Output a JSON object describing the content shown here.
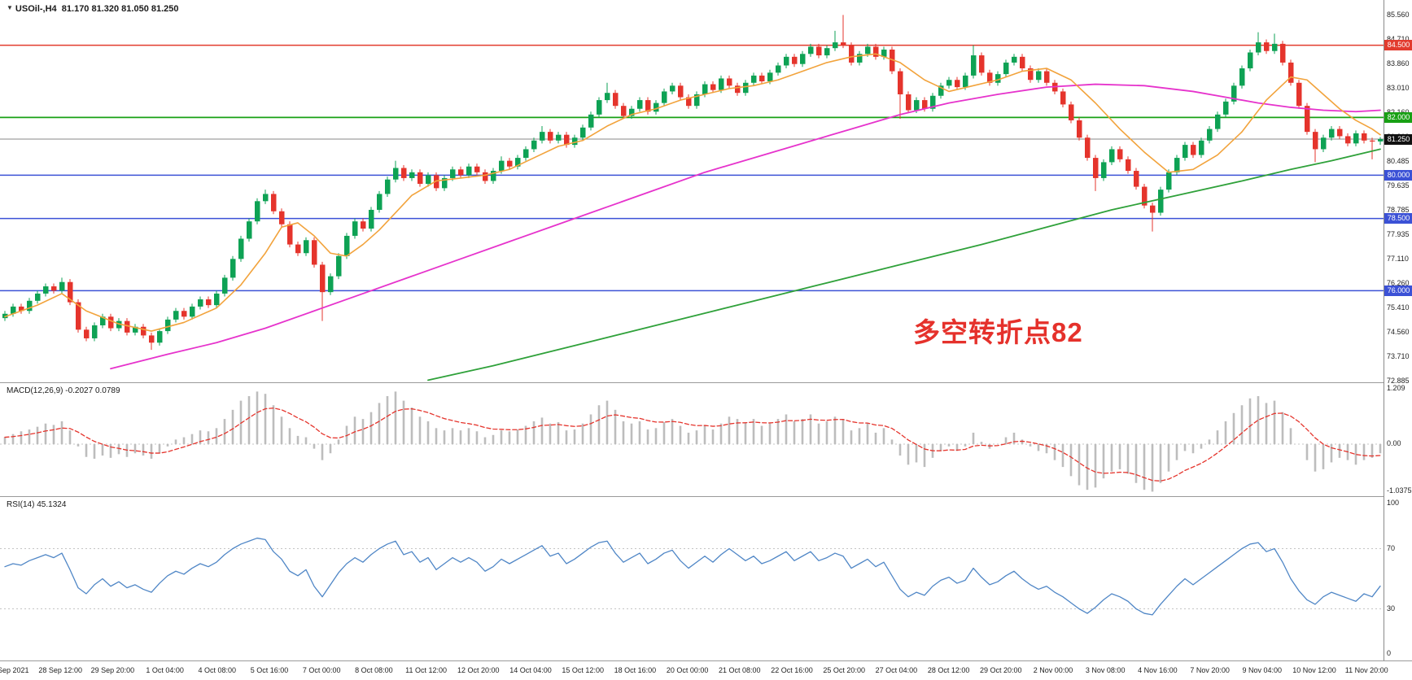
{
  "header": {
    "marker": "▼",
    "symbol_period": "USOil-,H4",
    "ohlc": "81.170 81.320 81.050 81.250"
  },
  "main_chart": {
    "annotation": {
      "text": "多空转折点82",
      "color": "#e5312b"
    },
    "price_scale_labels": [
      "85.560",
      "84.710",
      "83.860",
      "83.010",
      "82.160",
      "81.310",
      "80.485",
      "79.635",
      "78.785",
      "77.935",
      "77.110",
      "76.260",
      "75.410",
      "74.560",
      "73.710",
      "72.885"
    ],
    "badges": [
      {
        "value": "84.500",
        "color": "#e23b2e",
        "price": 84.5
      },
      {
        "value": "82.000",
        "color": "#18a014",
        "price": 82.0
      },
      {
        "value": "81.250",
        "color": "#111111",
        "price": 81.25
      },
      {
        "value": "80.000",
        "color": "#3b51d6",
        "price": 80.0
      },
      {
        "value": "78.500",
        "color": "#3b51d6",
        "price": 78.5
      },
      {
        "value": "76.000",
        "color": "#3b51d6",
        "price": 76.0
      }
    ],
    "levels": [
      {
        "price": 84.5,
        "color": "#e23b2e",
        "width": 1.4
      },
      {
        "price": 82.0,
        "color": "#18a014",
        "width": 1.7
      },
      {
        "price": 81.25,
        "color": "#8a8a8a",
        "width": 1
      },
      {
        "price": 80.0,
        "color": "#3b51d6",
        "width": 1.4
      },
      {
        "price": 78.5,
        "color": "#3b51d6",
        "width": 1.4
      },
      {
        "price": 76.0,
        "color": "#3b51d6",
        "width": 1.4
      }
    ]
  },
  "macd": {
    "label": "MACD(12,26,9) -0.2027 0.0789",
    "scale": [
      {
        "text": "1.209",
        "v": 1.209
      },
      {
        "text": "0.00",
        "v": 0
      },
      {
        "text": "-1.0375",
        "v": -1.0375
      }
    ]
  },
  "rsi": {
    "label": "RSI(14) 45.1324",
    "scale": [
      {
        "text": "100",
        "v": 100
      },
      {
        "text": "70",
        "v": 70
      },
      {
        "text": "30",
        "v": 30
      },
      {
        "text": "0",
        "v": 0
      }
    ]
  },
  "time_axis": {
    "labels": [
      "27 Sep 2021",
      "28 Sep 12:00",
      "29 Sep 20:00",
      "1 Oct 04:00",
      "4 Oct 08:00",
      "5 Oct 16:00",
      "7 Oct 00:00",
      "8 Oct 08:00",
      "11 Oct 12:00",
      "12 Oct 20:00",
      "14 Oct 04:00",
      "15 Oct 12:00",
      "18 Oct 16:00",
      "20 Oct 00:00",
      "21 Oct 08:00",
      "22 Oct 16:00",
      "25 Oct 20:00",
      "27 Oct 04:00",
      "28 Oct 12:00",
      "29 Oct 20:00",
      "2 Nov 00:00",
      "3 Nov 08:00",
      "4 Nov 16:00",
      "7 Nov 20:00",
      "9 Nov 04:00",
      "10 Nov 12:00",
      "11 Nov 20:00"
    ]
  },
  "colors": {
    "bull": "#0ea254",
    "bear": "#e5342c",
    "ma_fast": "#f2a33c",
    "ma_mid": "#e633cc",
    "ma_slow": "#2fa13a",
    "macd_hist": "#bdbdbd",
    "macd_signal": "#e5342c",
    "rsi_line": "#4f86c6",
    "grid_dash": "#c4c4c4"
  },
  "chart_data": {
    "type": "candlestick",
    "symbol": "USOil",
    "timeframe": "H4",
    "title": "USOil-,H4",
    "last_ohlc": {
      "open": 81.17,
      "high": 81.32,
      "low": 81.05,
      "close": 81.25
    },
    "price_axis_range": [
      72.885,
      85.56
    ],
    "horizontal_levels": [
      84.5,
      82.0,
      80.0,
      78.5,
      76.0
    ],
    "current_price": 81.25,
    "open_rule": "previous_close",
    "first_open": 75.05,
    "default_wick": 0.1,
    "closes": [
      75.2,
      75.45,
      75.3,
      75.65,
      75.9,
      76.15,
      76.0,
      76.3,
      75.6,
      74.65,
      74.35,
      74.8,
      75.1,
      74.7,
      74.95,
      74.55,
      74.75,
      74.45,
      74.2,
      74.6,
      75.0,
      75.3,
      75.1,
      75.45,
      75.7,
      75.5,
      75.9,
      76.45,
      77.1,
      77.8,
      78.4,
      79.1,
      79.35,
      78.75,
      78.3,
      77.6,
      77.3,
      77.75,
      76.9,
      75.95,
      76.5,
      77.2,
      77.9,
      78.4,
      78.15,
      78.8,
      79.35,
      79.85,
      80.25,
      79.9,
      80.1,
      79.7,
      80.0,
      79.55,
      79.9,
      80.2,
      80.0,
      80.3,
      80.1,
      79.8,
      80.15,
      80.5,
      80.3,
      80.6,
      80.9,
      81.2,
      81.5,
      81.2,
      81.4,
      81.05,
      81.3,
      81.65,
      82.1,
      82.6,
      82.85,
      82.4,
      82.05,
      82.3,
      82.6,
      82.2,
      82.5,
      82.9,
      83.1,
      82.7,
      82.4,
      82.8,
      83.15,
      82.95,
      83.35,
      83.1,
      82.85,
      83.2,
      83.45,
      83.25,
      83.55,
      83.8,
      84.1,
      83.85,
      84.2,
      84.45,
      84.15,
      84.4,
      84.6,
      84.5,
      83.9,
      84.2,
      84.45,
      84.1,
      84.35,
      83.6,
      82.8,
      82.25,
      82.6,
      82.3,
      82.75,
      83.1,
      83.3,
      83.05,
      83.45,
      84.15,
      83.55,
      83.2,
      83.5,
      83.9,
      84.1,
      83.7,
      83.3,
      83.6,
      83.2,
      82.9,
      82.45,
      81.9,
      81.3,
      80.6,
      79.9,
      80.45,
      80.9,
      80.55,
      80.15,
      79.6,
      78.95,
      78.7,
      79.5,
      80.1,
      80.6,
      81.05,
      80.7,
      81.2,
      81.6,
      82.1,
      82.55,
      83.1,
      83.7,
      84.25,
      84.6,
      84.3,
      84.55,
      83.9,
      83.2,
      82.4,
      81.5,
      80.9,
      81.3,
      81.6,
      81.35,
      81.1,
      81.45,
      81.2,
      81.17,
      81.25
    ],
    "wick_overrides": {
      "7": {
        "h": 76.45
      },
      "18": {
        "l": 73.95
      },
      "32": {
        "h": 79.5
      },
      "39": {
        "l": 74.95
      },
      "48": {
        "h": 80.5
      },
      "61": {
        "h": 80.65
      },
      "66": {
        "h": 81.7
      },
      "74": {
        "h": 83.2
      },
      "102": {
        "h": 85.0
      },
      "103": {
        "h": 85.55
      },
      "110": {
        "l": 81.95
      },
      "119": {
        "h": 84.5
      },
      "134": {
        "l": 79.45
      },
      "141": {
        "l": 78.05
      },
      "154": {
        "h": 84.95
      },
      "156": {
        "h": 84.9
      },
      "161": {
        "l": 80.45
      },
      "168": {
        "l": 80.55
      },
      "169": {
        "h": 81.32,
        "l": 81.05
      }
    },
    "ma_fast_orange": [
      [
        0,
        75.1
      ],
      [
        4,
        75.5
      ],
      [
        7,
        75.9
      ],
      [
        10,
        75.3
      ],
      [
        14,
        74.85
      ],
      [
        18,
        74.6
      ],
      [
        22,
        74.9
      ],
      [
        26,
        75.4
      ],
      [
        29,
        76.2
      ],
      [
        32,
        77.3
      ],
      [
        34,
        78.2
      ],
      [
        36,
        78.35
      ],
      [
        38,
        77.9
      ],
      [
        40,
        77.3
      ],
      [
        42,
        77.2
      ],
      [
        44,
        77.6
      ],
      [
        46,
        78.1
      ],
      [
        48,
        78.7
      ],
      [
        50,
        79.3
      ],
      [
        53,
        79.8
      ],
      [
        56,
        79.9
      ],
      [
        59,
        80.0
      ],
      [
        62,
        80.2
      ],
      [
        65,
        80.6
      ],
      [
        68,
        81.0
      ],
      [
        71,
        81.2
      ],
      [
        74,
        81.7
      ],
      [
        77,
        82.1
      ],
      [
        80,
        82.3
      ],
      [
        83,
        82.6
      ],
      [
        86,
        82.8
      ],
      [
        89,
        83.0
      ],
      [
        92,
        83.1
      ],
      [
        95,
        83.3
      ],
      [
        98,
        83.6
      ],
      [
        101,
        83.9
      ],
      [
        104,
        84.1
      ],
      [
        107,
        84.2
      ],
      [
        110,
        83.9
      ],
      [
        113,
        83.3
      ],
      [
        116,
        82.9
      ],
      [
        119,
        83.1
      ],
      [
        122,
        83.3
      ],
      [
        125,
        83.6
      ],
      [
        128,
        83.7
      ],
      [
        131,
        83.3
      ],
      [
        134,
        82.5
      ],
      [
        137,
        81.6
      ],
      [
        140,
        80.8
      ],
      [
        143,
        80.1
      ],
      [
        146,
        80.2
      ],
      [
        149,
        80.7
      ],
      [
        152,
        81.5
      ],
      [
        155,
        82.6
      ],
      [
        158,
        83.4
      ],
      [
        160,
        83.3
      ],
      [
        162,
        82.8
      ],
      [
        164,
        82.3
      ],
      [
        166,
        81.9
      ],
      [
        168,
        81.6
      ],
      [
        169,
        81.4
      ]
    ],
    "ma_mid_magenta": [
      [
        13,
        73.3
      ],
      [
        20,
        73.8
      ],
      [
        26,
        74.2
      ],
      [
        32,
        74.7
      ],
      [
        38,
        75.3
      ],
      [
        44,
        75.9
      ],
      [
        50,
        76.5
      ],
      [
        56,
        77.1
      ],
      [
        62,
        77.7
      ],
      [
        68,
        78.3
      ],
      [
        74,
        78.9
      ],
      [
        80,
        79.5
      ],
      [
        86,
        80.1
      ],
      [
        92,
        80.6
      ],
      [
        98,
        81.1
      ],
      [
        104,
        81.6
      ],
      [
        110,
        82.1
      ],
      [
        116,
        82.5
      ],
      [
        122,
        82.8
      ],
      [
        128,
        83.05
      ],
      [
        134,
        83.15
      ],
      [
        140,
        83.1
      ],
      [
        146,
        82.9
      ],
      [
        150,
        82.7
      ],
      [
        154,
        82.5
      ],
      [
        158,
        82.35
      ],
      [
        162,
        82.25
      ],
      [
        166,
        82.2
      ],
      [
        169,
        82.25
      ]
    ],
    "ma_slow_green": [
      [
        52,
        72.9
      ],
      [
        60,
        73.4
      ],
      [
        70,
        74.1
      ],
      [
        80,
        74.8
      ],
      [
        90,
        75.5
      ],
      [
        100,
        76.2
      ],
      [
        110,
        76.9
      ],
      [
        120,
        77.6
      ],
      [
        128,
        78.2
      ],
      [
        136,
        78.8
      ],
      [
        144,
        79.3
      ],
      [
        152,
        79.8
      ],
      [
        158,
        80.2
      ],
      [
        163,
        80.5
      ],
      [
        169,
        80.9
      ]
    ],
    "macd": {
      "params": "12,26,9",
      "current": {
        "macd": -0.2027,
        "signal": 0.0789
      },
      "range": [
        -1.0375,
        1.209
      ],
      "signal_rule": "EMA9_of_values",
      "values": [
        0.15,
        0.22,
        0.28,
        0.32,
        0.38,
        0.45,
        0.42,
        0.5,
        0.3,
        -0.05,
        -0.28,
        -0.32,
        -0.25,
        -0.3,
        -0.22,
        -0.28,
        -0.2,
        -0.25,
        -0.32,
        -0.2,
        -0.05,
        0.1,
        0.15,
        0.22,
        0.3,
        0.28,
        0.35,
        0.55,
        0.75,
        0.95,
        1.05,
        1.15,
        1.1,
        0.85,
        0.6,
        0.35,
        0.18,
        0.15,
        -0.1,
        -0.35,
        -0.2,
        0.1,
        0.4,
        0.6,
        0.55,
        0.7,
        0.9,
        1.05,
        1.15,
        0.95,
        0.8,
        0.6,
        0.5,
        0.35,
        0.3,
        0.35,
        0.3,
        0.35,
        0.28,
        0.15,
        0.2,
        0.3,
        0.28,
        0.32,
        0.4,
        0.5,
        0.58,
        0.45,
        0.48,
        0.3,
        0.32,
        0.45,
        0.65,
        0.85,
        0.95,
        0.75,
        0.5,
        0.45,
        0.5,
        0.32,
        0.35,
        0.48,
        0.55,
        0.4,
        0.25,
        0.3,
        0.42,
        0.32,
        0.45,
        0.6,
        0.55,
        0.48,
        0.55,
        0.4,
        0.45,
        0.55,
        0.65,
        0.5,
        0.55,
        0.65,
        0.45,
        0.5,
        0.6,
        0.55,
        0.3,
        0.35,
        0.45,
        0.25,
        0.35,
        0.1,
        -0.25,
        -0.45,
        -0.4,
        -0.5,
        -0.3,
        -0.15,
        -0.05,
        -0.15,
        -0.05,
        0.25,
        0.05,
        -0.1,
        0.0,
        0.15,
        0.25,
        0.1,
        -0.05,
        -0.15,
        -0.2,
        -0.35,
        -0.5,
        -0.7,
        -0.9,
        -1.0,
        -0.95,
        -0.75,
        -0.6,
        -0.55,
        -0.65,
        -0.85,
        -1.0,
        -1.04,
        -0.85,
        -0.6,
        -0.35,
        -0.15,
        -0.2,
        -0.1,
        0.1,
        0.3,
        0.5,
        0.68,
        0.85,
        1.0,
        1.05,
        0.9,
        0.95,
        0.7,
        0.35,
        0.0,
        -0.35,
        -0.6,
        -0.55,
        -0.4,
        -0.3,
        -0.35,
        -0.45,
        -0.35,
        -0.3,
        -0.2
      ]
    },
    "rsi": {
      "period": 14,
      "current": 45.1324,
      "levels": [
        70,
        30
      ],
      "values": [
        58,
        60,
        59,
        62,
        64,
        66,
        64,
        67,
        56,
        44,
        40,
        46,
        50,
        45,
        48,
        44,
        46,
        43,
        41,
        47,
        52,
        55,
        53,
        57,
        60,
        58,
        61,
        66,
        70,
        73,
        75,
        77,
        76,
        68,
        63,
        55,
        52,
        56,
        45,
        38,
        46,
        54,
        60,
        64,
        61,
        66,
        70,
        73,
        75,
        66,
        68,
        61,
        64,
        56,
        60,
        64,
        61,
        64,
        61,
        55,
        58,
        63,
        60,
        63,
        66,
        69,
        72,
        65,
        67,
        60,
        63,
        67,
        71,
        74,
        75,
        67,
        61,
        64,
        67,
        60,
        63,
        67,
        69,
        62,
        57,
        61,
        65,
        61,
        66,
        70,
        66,
        62,
        65,
        60,
        62,
        65,
        68,
        62,
        65,
        68,
        62,
        64,
        67,
        65,
        57,
        60,
        63,
        58,
        61,
        52,
        43,
        38,
        41,
        39,
        45,
        49,
        51,
        47,
        49,
        57,
        51,
        46,
        48,
        52,
        55,
        50,
        46,
        43,
        45,
        41,
        38,
        34,
        30,
        27,
        31,
        36,
        40,
        38,
        35,
        30,
        27,
        26,
        33,
        39,
        45,
        50,
        46,
        50,
        54,
        58,
        62,
        66,
        70,
        73,
        74,
        68,
        70,
        61,
        50,
        42,
        36,
        33,
        38,
        41,
        39,
        37,
        35,
        40,
        38,
        45.1
      ]
    },
    "time_ticks": [
      "27 Sep 2021",
      "28 Sep 12:00",
      "29 Sep 20:00",
      "1 Oct 04:00",
      "4 Oct 08:00",
      "5 Oct 16:00",
      "7 Oct 00:00",
      "8 Oct 08:00",
      "11 Oct 12:00",
      "12 Oct 20:00",
      "14 Oct 04:00",
      "15 Oct 12:00",
      "18 Oct 16:00",
      "20 Oct 00:00",
      "21 Oct 08:00",
      "22 Oct 16:00",
      "25 Oct 20:00",
      "27 Oct 04:00",
      "28 Oct 12:00",
      "29 Oct 20:00",
      "2 Nov 00:00",
      "3 Nov 08:00",
      "4 Nov 16:00",
      "7 Nov 20:00",
      "9 Nov 04:00",
      "10 Nov 12:00",
      "11 Nov 20:00"
    ]
  }
}
